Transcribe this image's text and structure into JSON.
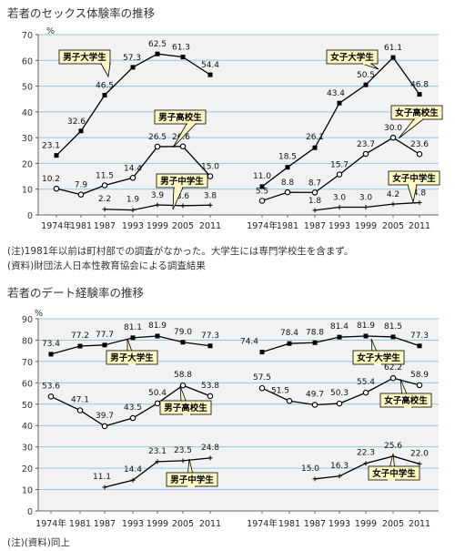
{
  "titles": {
    "chart1": "若者のセックス体験率の推移",
    "chart2": "若者のデート経験率の推移"
  },
  "notes": {
    "note1": "(注)1981年以前は町村部での調査がなかった。大学生には専門学校生を含まず。",
    "note2": "(資料)財団法人日本性教育協会による調査結果",
    "note3": "(注)(資料)同上"
  },
  "colors": {
    "plot_bg": "#f2f2f2",
    "grid": "#8ec8e6",
    "label_bg": "#fff9c4",
    "line": "#000000"
  },
  "chart_data": [
    {
      "type": "line",
      "title": "若者のセックス体験率の推移",
      "ylabel": "%",
      "ylim": [
        0,
        70
      ],
      "yticks": [
        0,
        10,
        20,
        30,
        40,
        50,
        60,
        70
      ],
      "grid": true,
      "categories": [
        "1974年",
        "1981",
        "1987",
        "1993",
        "1999",
        "2005",
        "2011"
      ],
      "series": [
        {
          "name": "男子大学生",
          "panel": "male",
          "marker": "square",
          "values": [
            23.1,
            32.6,
            46.5,
            57.3,
            62.5,
            61.3,
            54.4
          ]
        },
        {
          "name": "男子高校生",
          "panel": "male",
          "marker": "circle",
          "values": [
            10.2,
            7.9,
            11.5,
            14.4,
            26.5,
            26.6,
            15.0
          ]
        },
        {
          "name": "男子中学生",
          "panel": "male",
          "marker": "plus",
          "values": [
            null,
            null,
            2.2,
            1.9,
            3.9,
            3.6,
            3.8
          ]
        },
        {
          "name": "女子大学生",
          "panel": "female",
          "marker": "square",
          "values": [
            11.0,
            18.5,
            26.1,
            43.4,
            50.5,
            61.1,
            46.8
          ]
        },
        {
          "name": "女子高校生",
          "panel": "female",
          "marker": "circle",
          "values": [
            5.5,
            8.8,
            8.7,
            15.7,
            23.7,
            30.0,
            23.6
          ]
        },
        {
          "name": "女子中学生",
          "panel": "female",
          "marker": "plus",
          "values": [
            null,
            null,
            1.8,
            3.0,
            3.0,
            4.2,
            4.8
          ]
        }
      ]
    },
    {
      "type": "line",
      "title": "若者のデート経験率の推移",
      "ylabel": "%",
      "ylim": [
        0,
        90
      ],
      "yticks": [
        0,
        10,
        20,
        30,
        40,
        50,
        60,
        70,
        80,
        90
      ],
      "grid": true,
      "categories": [
        "1974年",
        "1981",
        "1987",
        "1993",
        "1999",
        "2005",
        "2011"
      ],
      "series": [
        {
          "name": "男子大学生",
          "panel": "male",
          "marker": "square",
          "values": [
            73.4,
            77.2,
            77.7,
            81.1,
            81.9,
            79.0,
            77.3
          ]
        },
        {
          "name": "男子高校生",
          "panel": "male",
          "marker": "circle",
          "values": [
            53.6,
            47.1,
            39.7,
            43.5,
            50.4,
            58.8,
            53.8
          ]
        },
        {
          "name": "男子中学生",
          "panel": "male",
          "marker": "plus",
          "values": [
            null,
            null,
            11.1,
            14.4,
            23.1,
            23.5,
            24.8
          ]
        },
        {
          "name": "女子大学生",
          "panel": "female",
          "marker": "square",
          "values": [
            74.4,
            78.4,
            78.8,
            81.4,
            81.9,
            81.5,
            77.3
          ]
        },
        {
          "name": "女子高校生",
          "panel": "female",
          "marker": "circle",
          "values": [
            57.5,
            51.5,
            49.7,
            50.3,
            55.4,
            62.2,
            58.9
          ]
        },
        {
          "name": "女子中学生",
          "panel": "female",
          "marker": "plus",
          "values": [
            null,
            null,
            15.0,
            16.3,
            22.3,
            25.6,
            22.0
          ]
        }
      ]
    }
  ]
}
